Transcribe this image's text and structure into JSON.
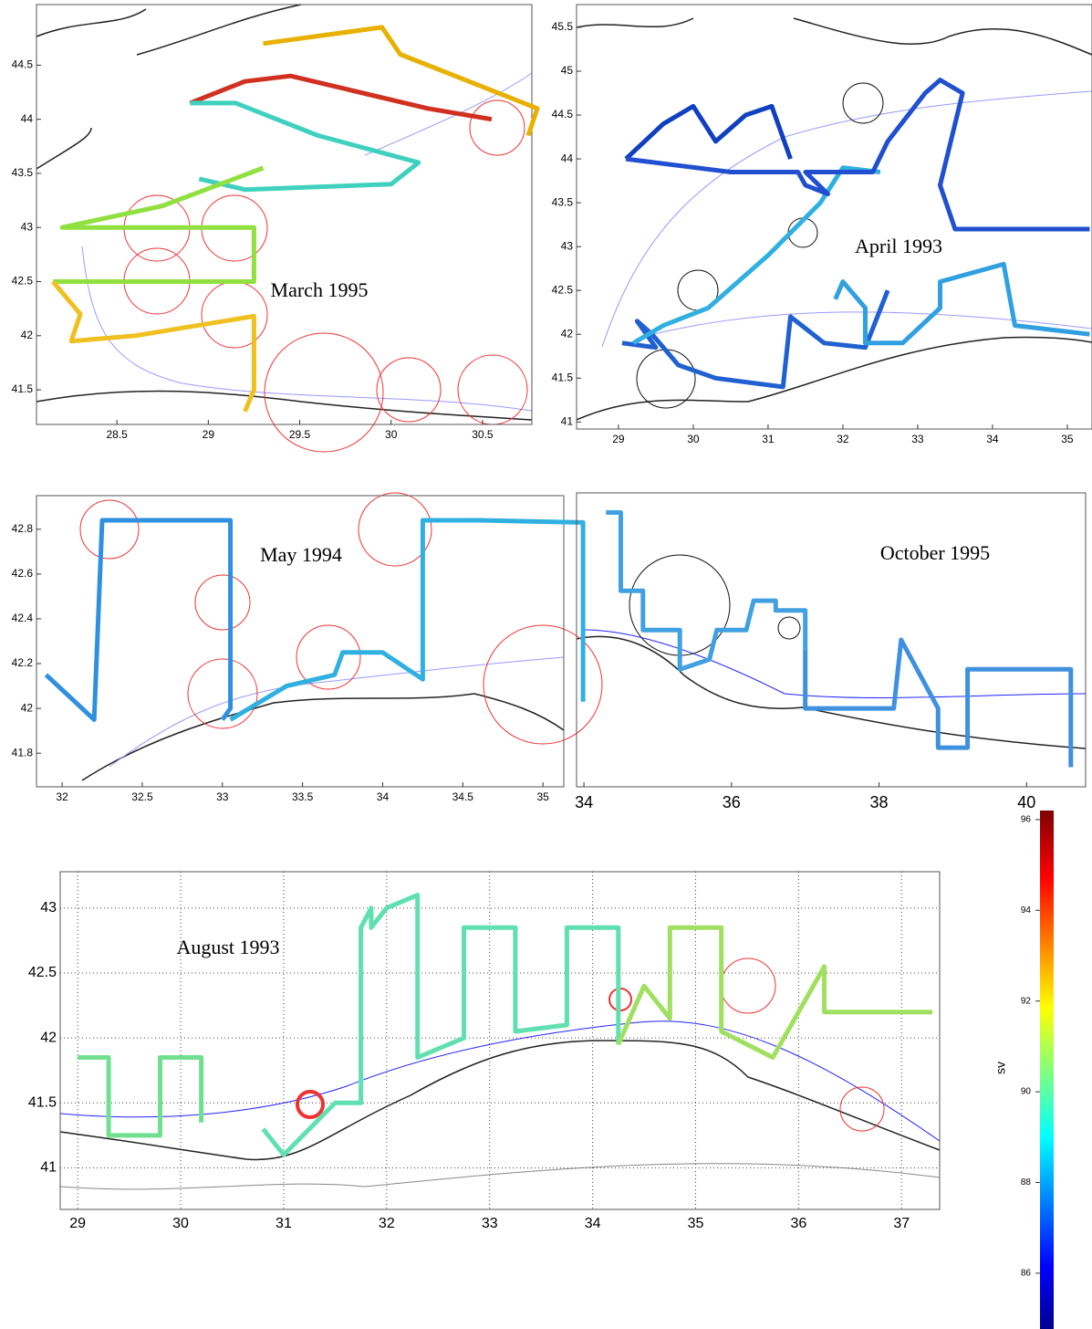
{
  "panels": [
    {
      "label": "March 1995",
      "xlim": [
        28.06,
        30.77
      ],
      "ylim": [
        41.18,
        45.06
      ],
      "xticks": [
        28.5,
        29,
        29.5,
        30,
        30.5
      ],
      "yticks": [
        41.5,
        42,
        42.5,
        43,
        43.5,
        44,
        44.5
      ],
      "tracks": [
        {
          "color": "#e8b000",
          "lon": [
            29.3,
            29.95,
            30.05,
            30.8,
            30.75
          ],
          "lat": [
            44.7,
            44.85,
            44.6,
            44.1,
            43.85
          ]
        },
        {
          "color": "#d03020",
          "lon": [
            28.9,
            29.2,
            29.45,
            30.2,
            30.55
          ],
          "lat": [
            44.15,
            44.35,
            44.4,
            44.1,
            44.0
          ]
        },
        {
          "color": "#40d0c0",
          "lon": [
            28.9,
            29.15,
            29.6,
            30.15,
            30.0,
            29.2,
            28.95
          ],
          "lat": [
            44.15,
            44.15,
            43.85,
            43.6,
            43.4,
            43.35,
            43.45
          ]
        },
        {
          "color": "#90e040",
          "lon": [
            29.3,
            28.75,
            28.2,
            29.25,
            29.25,
            28.15
          ],
          "lat": [
            43.55,
            43.2,
            43.0,
            43.0,
            42.5,
            42.5
          ]
        },
        {
          "color": "#f0c020",
          "lon": [
            28.15,
            28.3,
            28.25,
            28.6,
            29.25,
            29.25,
            29.2
          ],
          "lat": [
            42.5,
            42.2,
            41.95,
            42.0,
            42.18,
            41.5,
            41.3
          ]
        }
      ]
    },
    {
      "label": "April 1993",
      "xlim": [
        28.44,
        35.33
      ],
      "ylim": [
        40.92,
        45.76
      ],
      "xticks": [
        29,
        30,
        31,
        32,
        33,
        34,
        35
      ],
      "yticks": [
        41,
        41.5,
        42,
        42.5,
        43,
        43.5,
        44,
        44.5,
        45,
        45.5
      ],
      "tracks": [
        {
          "color": "#2060d0",
          "lon": [
            29.05,
            29.5,
            29.25,
            29.45,
            29.8,
            30.3,
            31.2,
            31.3,
            31.75,
            32.3,
            32.6
          ],
          "lat": [
            41.9,
            41.85,
            42.15,
            42.0,
            41.65,
            41.5,
            41.4,
            42.2,
            41.9,
            41.85,
            42.5
          ]
        },
        {
          "color": "#30b0e0",
          "lon": [
            29.2,
            29.6,
            30.2,
            31.0,
            31.7,
            32.0,
            32.5
          ],
          "lat": [
            41.9,
            42.1,
            42.3,
            42.9,
            43.5,
            43.9,
            43.85
          ]
        },
        {
          "color": "#1040c0",
          "lon": [
            29.1,
            29.6,
            30.0,
            30.3,
            30.7,
            31.05,
            31.3
          ],
          "lat": [
            44.0,
            44.4,
            44.6,
            44.2,
            44.5,
            44.6,
            44.0
          ]
        },
        {
          "color": "#2050d0",
          "lon": [
            29.1,
            30.5,
            31.4,
            31.5,
            31.8,
            31.5,
            32.4,
            32.6,
            33.1,
            33.3,
            33.6,
            33.3,
            33.5,
            34.0,
            35.3
          ],
          "lat": [
            44.0,
            43.85,
            43.85,
            43.7,
            43.6,
            43.85,
            43.85,
            44.2,
            44.75,
            44.9,
            44.75,
            43.7,
            43.2,
            43.2,
            43.2
          ]
        },
        {
          "color": "#30a0e0",
          "lon": [
            31.9,
            32.0,
            32.3,
            32.3,
            32.8,
            33.3,
            33.3,
            34.15,
            34.3,
            35.3
          ],
          "lat": [
            42.4,
            42.6,
            42.3,
            41.9,
            41.9,
            42.3,
            42.6,
            42.8,
            42.1,
            42.0
          ]
        }
      ]
    },
    {
      "label": "May 1994",
      "xlim": [
        31.84,
        35.13
      ],
      "ylim": [
        41.65,
        42.95
      ],
      "xticks": [
        32,
        32.5,
        33,
        33.5,
        34,
        34.5,
        35
      ],
      "yticks": [
        41.8,
        42,
        42.2,
        42.4,
        42.6,
        42.8
      ],
      "tracks": [
        {
          "color": "#3090e0",
          "lon": [
            31.9,
            32.2,
            32.25,
            33.05,
            33.05,
            33.0
          ],
          "lat": [
            42.15,
            41.95,
            42.84,
            42.84,
            42.0,
            41.95
          ]
        },
        {
          "color": "#30b0e0",
          "lon": [
            33.05,
            33.4,
            33.7,
            33.75,
            34.0,
            34.25,
            34.25,
            34.6,
            35.25,
            35.25
          ],
          "lat": [
            41.95,
            42.1,
            42.15,
            42.25,
            42.25,
            42.13,
            42.84,
            42.84,
            42.83,
            42.03
          ]
        }
      ]
    },
    {
      "label": "October 1995",
      "xlim": [
        33.9,
        40.8
      ],
      "ylim": [
        41.5,
        43.0
      ],
      "xticks": [
        34,
        36,
        38,
        40
      ],
      "tracks": [
        {
          "color": "#40a0e0",
          "lon": [
            34.3,
            34.5,
            34.5,
            34.8,
            34.8,
            35.3,
            35.3,
            35.7,
            35.8,
            36.2,
            36.3,
            36.6,
            36.6,
            37.0,
            37.0
          ],
          "lat": [
            42.9,
            42.9,
            42.5,
            42.5,
            42.3,
            42.3,
            42.1,
            42.15,
            42.3,
            42.3,
            42.45,
            42.45,
            42.4,
            42.4,
            42.2
          ]
        },
        {
          "color": "#4090e0",
          "lon": [
            37.0,
            37.0,
            37.2,
            38.2,
            38.3,
            38.8,
            38.8,
            39.2,
            39.2,
            40.6,
            40.6
          ],
          "lat": [
            42.2,
            41.9,
            41.9,
            41.9,
            42.25,
            41.9,
            41.7,
            41.7,
            42.1,
            42.1,
            41.6
          ]
        }
      ]
    },
    {
      "label": "August 1993",
      "xlim": [
        28.83,
        37.37
      ],
      "ylim": [
        40.68,
        43.28
      ],
      "xticks": [
        29,
        30,
        31,
        32,
        33,
        34,
        35,
        36,
        37
      ],
      "yticks": [
        41,
        41.5,
        42,
        42.5,
        43
      ],
      "grid": true,
      "tracks": [
        {
          "color": "#70e090",
          "lon": [
            29.0,
            29.3,
            29.3,
            29.6,
            29.8,
            29.8,
            30.2,
            30.2
          ],
          "lat": [
            41.85,
            41.85,
            41.25,
            41.25,
            41.25,
            41.85,
            41.85,
            41.35
          ]
        },
        {
          "color": "#60e0b0",
          "lon": [
            30.8,
            30.9,
            31.0,
            31.5,
            31.75,
            31.75,
            31.85,
            31.85,
            32.0,
            32.3,
            32.3,
            32.75,
            32.75,
            33.25,
            33.25,
            33.75,
            33.75,
            34.25,
            34.25
          ],
          "lat": [
            41.3,
            41.2,
            41.1,
            41.5,
            41.5,
            42.85,
            43.0,
            42.85,
            43.0,
            43.1,
            41.85,
            42.0,
            42.85,
            42.85,
            42.05,
            42.1,
            42.85,
            42.85,
            41.95
          ]
        },
        {
          "color": "#a0e060",
          "lon": [
            34.25,
            34.5,
            34.75,
            34.75,
            35.25,
            35.25,
            35.75,
            36.25,
            36.25,
            37.3
          ],
          "lat": [
            41.95,
            42.4,
            42.15,
            42.85,
            42.85,
            42.05,
            41.85,
            42.55,
            42.2,
            42.2
          ]
        }
      ]
    }
  ],
  "colorbar": {
    "label": "sv",
    "lim": [
      84.77,
      96.2
    ],
    "ticks": [
      86,
      88,
      90,
      92,
      94,
      96
    ]
  }
}
